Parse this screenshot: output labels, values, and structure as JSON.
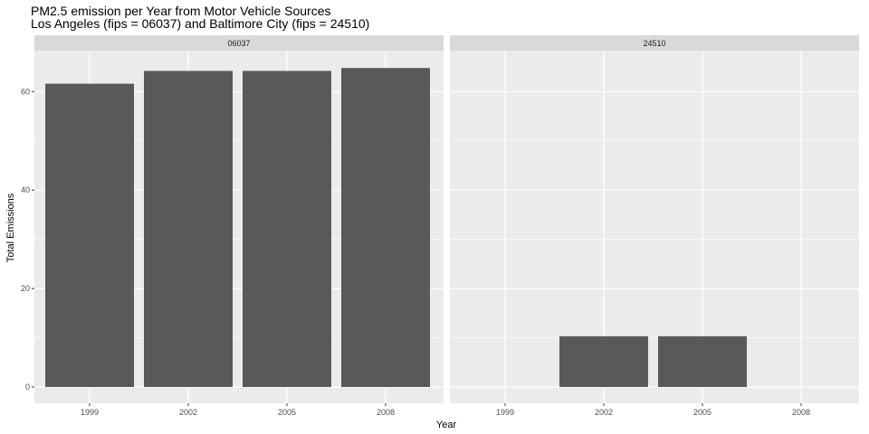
{
  "chart_data": {
    "type": "bar",
    "title": "PM2.5 emission per Year from Motor Vehicle Sources",
    "subtitle": "Los Angeles (fips = 06037) and Baltimore City (fips = 24510)",
    "xlabel": "Year",
    "ylabel": "Total Emissions",
    "categories": [
      "1999",
      "2002",
      "2005",
      "2008"
    ],
    "ylim": [
      0,
      68
    ],
    "yticks": [
      0,
      20,
      40,
      60
    ],
    "grid": true,
    "legend": "none",
    "colors": {
      "bar": "#595959",
      "panel": "#ebebeb",
      "strip": "#d9d9d9",
      "grid": "#ffffff"
    },
    "facets": [
      {
        "label": "06037",
        "values": [
          61.6,
          64.2,
          64.2,
          64.8
        ]
      },
      {
        "label": "24510",
        "values": [
          null,
          10.3,
          10.3,
          null
        ]
      }
    ]
  }
}
